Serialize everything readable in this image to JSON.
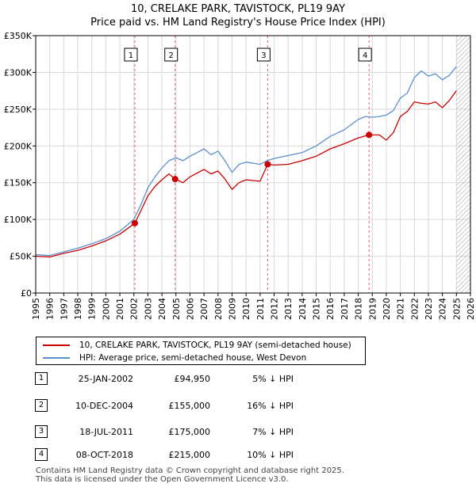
{
  "title": {
    "line1": "10, CRELAKE PARK, TAVISTOCK, PL19 9AY",
    "line2": "Price paid vs. HM Land Registry's House Price Index (HPI)"
  },
  "colors": {
    "property": "#cc0000",
    "hpi": "#5b8fcf",
    "sale_band": "#dfe8f5",
    "future_hatch": "#999999"
  },
  "legend": {
    "property_label": "10, CRELAKE PARK, TAVISTOCK, PL19 9AY (semi-detached house)",
    "hpi_label": "HPI: Average price, semi-detached house, West Devon"
  },
  "chart_data": {
    "type": "line",
    "xlim": [
      1995,
      2026
    ],
    "ylim": [
      0,
      350000
    ],
    "x_ticks": [
      "1995",
      "1996",
      "1997",
      "1998",
      "1999",
      "2000",
      "2001",
      "2002",
      "2003",
      "2004",
      "2005",
      "2006",
      "2007",
      "2008",
      "2009",
      "2010",
      "2011",
      "2012",
      "2013",
      "2014",
      "2015",
      "2016",
      "2017",
      "2018",
      "2019",
      "2020",
      "2021",
      "2022",
      "2023",
      "2024",
      "2025",
      "2026"
    ],
    "y_ticks": [
      {
        "value": 0,
        "label": "£0"
      },
      {
        "value": 50000,
        "label": "£50K"
      },
      {
        "value": 100000,
        "label": "£100K"
      },
      {
        "value": 150000,
        "label": "£150K"
      },
      {
        "value": 200000,
        "label": "£200K"
      },
      {
        "value": 250000,
        "label": "£250K"
      },
      {
        "value": 300000,
        "label": "£300K"
      },
      {
        "value": 350000,
        "label": "£350K"
      }
    ],
    "grid": true,
    "hatch_from": 2025.0,
    "series": [
      {
        "name": "HPI: Average price, semi-detached house, West Devon",
        "x": [
          1995,
          1996,
          1997,
          1998,
          1999,
          2000,
          2001,
          2002,
          2002.5,
          2003,
          2003.5,
          2004,
          2004.5,
          2005,
          2005.5,
          2006,
          2007,
          2007.5,
          2008,
          2008.5,
          2009,
          2009.5,
          2010,
          2011,
          2011.5,
          2012,
          2013,
          2014,
          2015,
          2016,
          2017,
          2018,
          2018.5,
          2019,
          2019.5,
          2020,
          2020.5,
          2021,
          2021.5,
          2022,
          2022.5,
          2023,
          2023.5,
          2024,
          2024.5,
          2025
        ],
        "values": [
          52000,
          51000,
          56000,
          61000,
          67000,
          74000,
          84000,
          100000,
          120000,
          143000,
          158000,
          170000,
          180000,
          184000,
          180000,
          186000,
          196000,
          188000,
          193000,
          180000,
          164000,
          175000,
          178000,
          175000,
          180000,
          183000,
          187000,
          191000,
          200000,
          213000,
          222000,
          236000,
          240000,
          239000,
          240000,
          242000,
          248000,
          265000,
          272000,
          293000,
          302000,
          295000,
          298000,
          290000,
          296000,
          308000
        ]
      },
      {
        "name": "10, CRELAKE PARK, TAVISTOCK, PL19 9AY (semi-detached house)",
        "x": [
          1995,
          1996,
          1997,
          1998,
          1999,
          2000,
          2001,
          2002.07,
          2002.5,
          2003,
          2003.5,
          2004,
          2004.5,
          2004.94,
          2005.5,
          2006,
          2007,
          2007.5,
          2008,
          2008.5,
          2009,
          2009.5,
          2010,
          2011,
          2011.54,
          2012,
          2013,
          2014,
          2015,
          2016,
          2017,
          2018,
          2018.77,
          2019,
          2019.5,
          2020,
          2020.5,
          2021,
          2021.5,
          2022,
          2022.5,
          2023,
          2023.5,
          2024,
          2024.5,
          2025
        ],
        "values": [
          50000,
          49000,
          54000,
          58000,
          64000,
          71000,
          80000,
          94950,
          112000,
          132000,
          145000,
          154000,
          162000,
          155000,
          150000,
          158000,
          168000,
          162000,
          166000,
          155000,
          141000,
          150000,
          154000,
          152000,
          175000,
          174000,
          175000,
          180000,
          186000,
          196000,
          203000,
          211000,
          215000,
          215000,
          215000,
          208000,
          218000,
          240000,
          247000,
          260000,
          258000,
          257000,
          260000,
          252000,
          262000,
          275000
        ]
      }
    ],
    "sales": [
      {
        "id": "1",
        "x": 2002.07,
        "value": 94950
      },
      {
        "id": "2",
        "x": 2004.94,
        "value": 155000
      },
      {
        "id": "3",
        "x": 2011.54,
        "value": 175000
      },
      {
        "id": "4",
        "x": 2018.77,
        "value": 215000
      }
    ]
  },
  "sales_table": [
    {
      "id": "1",
      "date": "25-JAN-2002",
      "price": "£94,950",
      "pct": "5% ↓ HPI"
    },
    {
      "id": "2",
      "date": "10-DEC-2004",
      "price": "£155,000",
      "pct": "16% ↓ HPI"
    },
    {
      "id": "3",
      "date": "18-JUL-2011",
      "price": "£175,000",
      "pct": "7% ↓ HPI"
    },
    {
      "id": "4",
      "date": "08-OCT-2018",
      "price": "£215,000",
      "pct": "10% ↓ HPI"
    }
  ],
  "footer": {
    "line1": "Contains HM Land Registry data © Crown copyright and database right 2025.",
    "line2": "This data is licensed under the Open Government Licence v3.0."
  }
}
